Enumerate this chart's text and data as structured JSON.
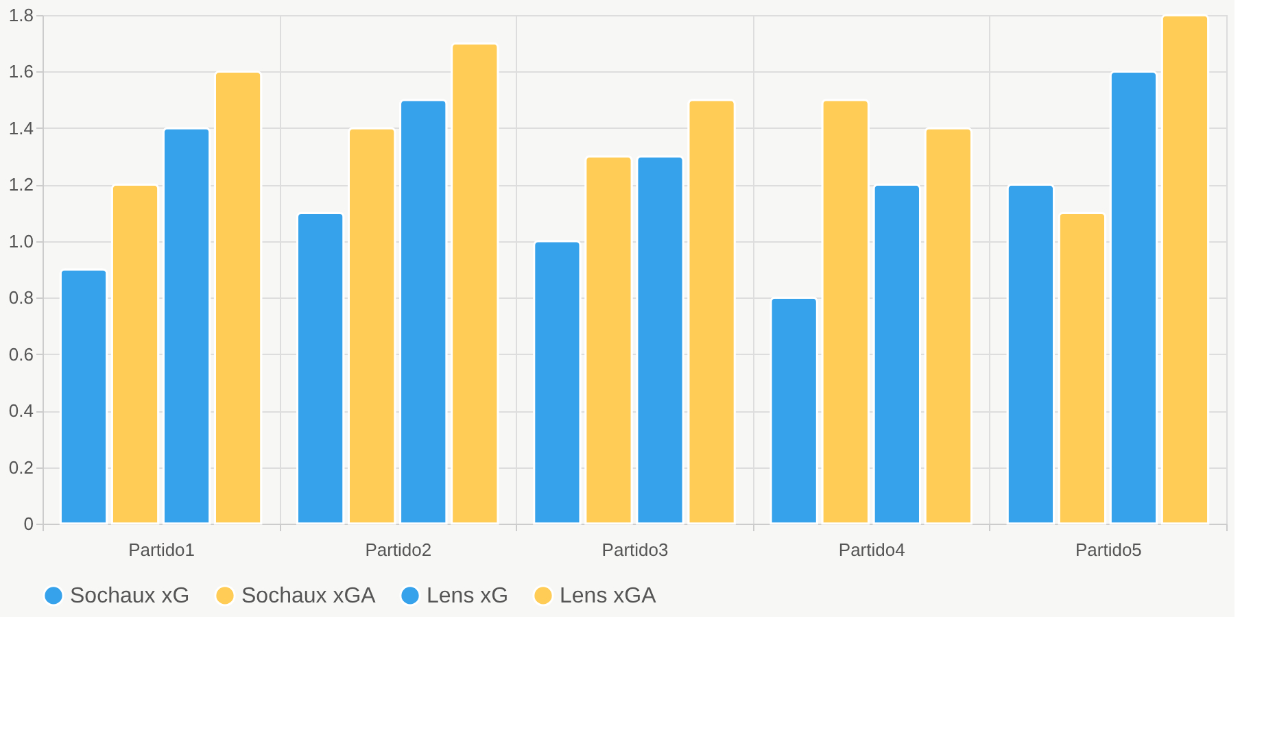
{
  "chart_data": {
    "type": "bar",
    "categories": [
      "Partido1",
      "Partido2",
      "Partido3",
      "Partido4",
      "Partido5"
    ],
    "series": [
      {
        "name": "Sochaux xG",
        "color": "#36a2eb",
        "values": [
          0.9,
          1.1,
          1.0,
          0.8,
          1.2
        ]
      },
      {
        "name": "Sochaux xGA",
        "color": "#ffcd56",
        "values": [
          1.2,
          1.4,
          1.3,
          1.5,
          1.1
        ]
      },
      {
        "name": "Lens xG",
        "color": "#36a2eb",
        "values": [
          1.4,
          1.5,
          1.3,
          1.2,
          1.6
        ]
      },
      {
        "name": "Lens xGA",
        "color": "#ffcd56",
        "values": [
          1.6,
          1.7,
          1.5,
          1.4,
          1.8
        ]
      }
    ],
    "ylim": [
      0,
      1.8
    ],
    "yticks": [
      0,
      0.2,
      0.4,
      0.6,
      0.8,
      {
        "value": 1,
        "label": "1.0"
      },
      1.2,
      1.4,
      1.6,
      1.8
    ],
    "grid": true,
    "legend": "bottom"
  }
}
